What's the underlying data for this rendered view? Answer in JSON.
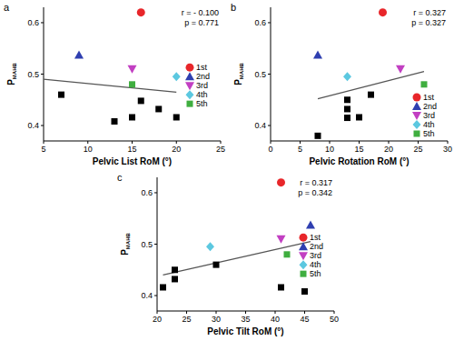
{
  "chart_data": [
    {
      "type": "scatter",
      "panel_label": "a",
      "xlabel": "Pelvic List RoM (°)",
      "ylabel": "P",
      "ylabel_subscript": "MAHB",
      "xlim": [
        5,
        25
      ],
      "xticks": [
        5,
        10,
        15,
        20,
        25
      ],
      "ylim": [
        0.37,
        0.63
      ],
      "yticks": [
        0.4,
        0.5,
        0.6
      ],
      "legend": "right",
      "annotations": [
        "r = - 0.100",
        "p = 0.771"
      ],
      "series": [
        {
          "color": "#000000",
          "marker": "square",
          "x": [
            7,
            13,
            15,
            16,
            18,
            20
          ],
          "values": [
            0.46,
            0.408,
            0.416,
            0.448,
            0.432,
            0.416
          ]
        },
        {
          "name": "1st",
          "color": "#e8262a",
          "marker": "circle",
          "x": [
            16
          ],
          "values": [
            0.62
          ]
        },
        {
          "name": "2nd",
          "color": "#2f3fb0",
          "marker": "triangle",
          "x": [
            9
          ],
          "values": [
            0.537
          ]
        },
        {
          "name": "3rd",
          "color": "#c23fc2",
          "marker": "triangle-down",
          "x": [
            15
          ],
          "values": [
            0.51
          ]
        },
        {
          "name": "4th",
          "color": "#5cc8e0",
          "marker": "diamond",
          "x": [
            20
          ],
          "values": [
            0.495
          ]
        },
        {
          "name": "5th",
          "color": "#3fae3f",
          "marker": "square",
          "x": [
            15
          ],
          "values": [
            0.48
          ]
        }
      ],
      "fit": {
        "x": [
          5,
          20
        ],
        "values": [
          0.49,
          0.465
        ]
      }
    },
    {
      "type": "scatter",
      "panel_label": "b",
      "xlabel": "Pelvic Rotation RoM (°)",
      "ylabel": "P",
      "ylabel_subscript": "MAHB",
      "xlim": [
        0,
        30
      ],
      "xticks": [
        0,
        5,
        10,
        15,
        20,
        25,
        30
      ],
      "ylim": [
        0.37,
        0.63
      ],
      "yticks": [
        0.4,
        0.5,
        0.6
      ],
      "legend": "lower right",
      "annotations": [
        "r = 0.327",
        "p = 0.327"
      ],
      "series": [
        {
          "color": "#000000",
          "marker": "square",
          "x": [
            8,
            13,
            13,
            13,
            15,
            17
          ],
          "values": [
            0.38,
            0.45,
            0.432,
            0.415,
            0.416,
            0.46
          ]
        },
        {
          "name": "1st",
          "color": "#e8262a",
          "marker": "circle",
          "x": [
            19
          ],
          "values": [
            0.62
          ]
        },
        {
          "name": "2nd",
          "color": "#2f3fb0",
          "marker": "triangle",
          "x": [
            8
          ],
          "values": [
            0.537
          ]
        },
        {
          "name": "3rd",
          "color": "#c23fc2",
          "marker": "triangle-down",
          "x": [
            22
          ],
          "values": [
            0.51
          ]
        },
        {
          "name": "4th",
          "color": "#5cc8e0",
          "marker": "diamond",
          "x": [
            13
          ],
          "values": [
            0.495
          ]
        },
        {
          "name": "5th",
          "color": "#3fae3f",
          "marker": "square",
          "x": [
            26
          ],
          "values": [
            0.48
          ]
        }
      ],
      "fit": {
        "x": [
          8,
          26
        ],
        "values": [
          0.452,
          0.505
        ]
      }
    },
    {
      "type": "scatter",
      "panel_label": "c",
      "xlabel": "Pelvic Tilt RoM (°)",
      "ylabel": "P",
      "ylabel_subscript": "MAHB",
      "xlim": [
        20,
        50
      ],
      "xticks": [
        20,
        25,
        30,
        35,
        40,
        45,
        50
      ],
      "ylim": [
        0.37,
        0.63
      ],
      "yticks": [
        0.4,
        0.5,
        0.6
      ],
      "legend": "right",
      "annotations": [
        "r = 0.317",
        "p = 0.342"
      ],
      "series": [
        {
          "color": "#000000",
          "marker": "square",
          "x": [
            21,
            23,
            23,
            30,
            41,
            45
          ],
          "values": [
            0.416,
            0.45,
            0.432,
            0.46,
            0.416,
            0.408
          ]
        },
        {
          "name": "1st",
          "color": "#e8262a",
          "marker": "circle",
          "x": [
            41
          ],
          "values": [
            0.62
          ]
        },
        {
          "name": "2nd",
          "color": "#2f3fb0",
          "marker": "triangle",
          "x": [
            46
          ],
          "values": [
            0.537
          ]
        },
        {
          "name": "3rd",
          "color": "#c23fc2",
          "marker": "triangle-down",
          "x": [
            41
          ],
          "values": [
            0.51
          ]
        },
        {
          "name": "4th",
          "color": "#5cc8e0",
          "marker": "diamond",
          "x": [
            29
          ],
          "values": [
            0.495
          ]
        },
        {
          "name": "5th",
          "color": "#3fae3f",
          "marker": "square",
          "x": [
            42
          ],
          "values": [
            0.48
          ]
        }
      ],
      "fit": {
        "x": [
          21,
          46
        ],
        "values": [
          0.44,
          0.505
        ]
      }
    }
  ]
}
